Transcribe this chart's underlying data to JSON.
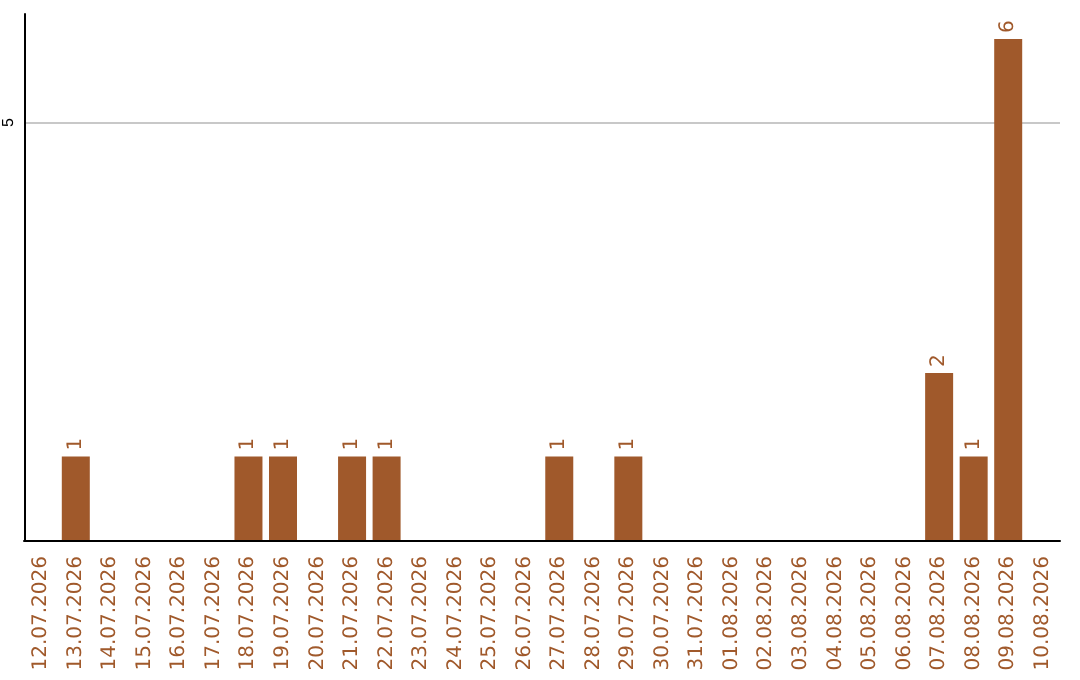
{
  "chart_data": {
    "type": "bar",
    "categories": [
      "12.07.2026",
      "13.07.2026",
      "14.07.2026",
      "15.07.2026",
      "16.07.2026",
      "17.07.2026",
      "18.07.2026",
      "19.07.2026",
      "20.07.2026",
      "21.07.2026",
      "22.07.2026",
      "23.07.2026",
      "24.07.2026",
      "25.07.2026",
      "26.07.2026",
      "27.07.2026",
      "28.07.2026",
      "29.07.2026",
      "30.07.2026",
      "31.07.2026",
      "01.08.2026",
      "02.08.2026",
      "03.08.2026",
      "04.08.2026",
      "05.08.2026",
      "06.08.2026",
      "07.08.2026",
      "08.08.2026",
      "09.08.2026",
      "10.08.2026"
    ],
    "values": [
      0,
      1,
      0,
      0,
      0,
      0,
      1,
      1,
      0,
      1,
      1,
      0,
      0,
      0,
      0,
      1,
      0,
      1,
      0,
      0,
      0,
      0,
      0,
      0,
      0,
      0,
      2,
      1,
      6,
      0
    ],
    "value_labels": [
      null,
      "1",
      null,
      null,
      null,
      null,
      "1",
      "1",
      null,
      "1",
      "1",
      null,
      null,
      null,
      null,
      "1",
      null,
      "1",
      null,
      null,
      null,
      null,
      null,
      null,
      null,
      null,
      "2",
      "1",
      "6",
      null
    ],
    "color": "#a0592b",
    "ylim": [
      0,
      6.3
    ],
    "yticks": [
      5
    ],
    "grid": "y"
  }
}
